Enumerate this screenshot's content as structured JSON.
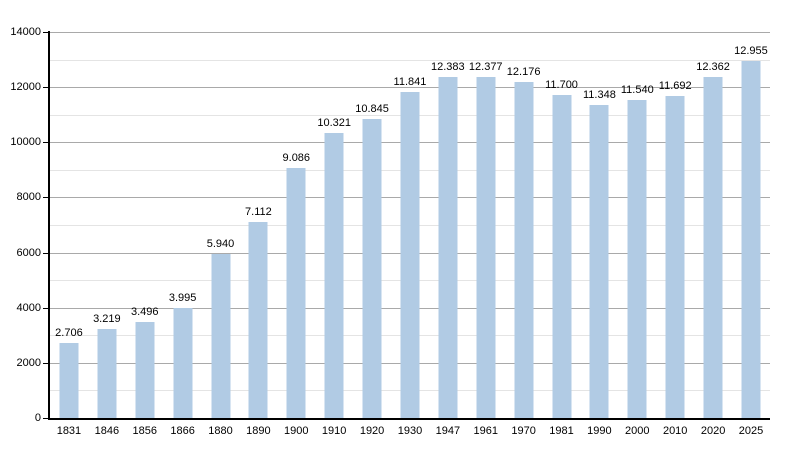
{
  "chart_data": {
    "type": "bar",
    "title": "",
    "categories": [
      "1831",
      "1846",
      "1856",
      "1866",
      "1880",
      "1890",
      "1900",
      "1910",
      "1920",
      "1930",
      "1947",
      "1961",
      "1970",
      "1981",
      "1990",
      "2000",
      "2010",
      "2020",
      "2025"
    ],
    "values": [
      2706,
      3219,
      3496,
      3995,
      5940,
      7112,
      9086,
      10321,
      10845,
      11841,
      12383,
      12377,
      12176,
      11700,
      11348,
      11540,
      11692,
      12362,
      12955
    ],
    "value_labels": [
      "2.706",
      "3.219",
      "3.496",
      "3.995",
      "5.940",
      "7.112",
      "9.086",
      "10.321",
      "10.845",
      "11.841",
      "12.383",
      "12.377",
      "12.176",
      "11.700",
      "11.348",
      "11.540",
      "11.692",
      "12.362",
      "12.955"
    ],
    "xlabel": "",
    "ylabel": "",
    "ylim": [
      0,
      14000
    ],
    "y_major_ticks": [
      0,
      2000,
      4000,
      6000,
      8000,
      10000,
      12000,
      14000
    ],
    "y_minor_step": 1000,
    "grid": "on",
    "legend": "none"
  },
  "colors": {
    "bar_fill": "#b1cbe4",
    "grid_major": "#a9a9a9",
    "grid_minor": "#e4e4e4",
    "axis": "#000000",
    "text": "#000000",
    "background": "#ffffff"
  }
}
